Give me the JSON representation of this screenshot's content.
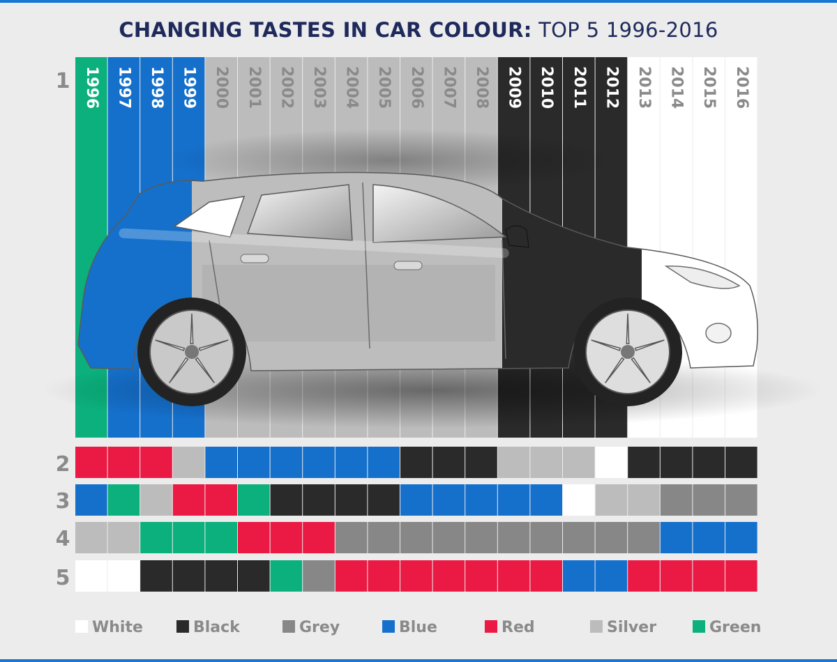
{
  "title": {
    "bold": "CHANGING TASTES IN CAR COLOUR:",
    "light": "TOP 5 1996-2016"
  },
  "colors": {
    "White": "#ffffff",
    "Black": "#2b2a2a",
    "Grey": "#878787",
    "Blue": "#1570cc",
    "Red": "#ea1a44",
    "Silver": "#bcbcbc",
    "Green": "#0bb07c"
  },
  "chart_data": {
    "type": "table",
    "years": [
      "1996",
      "1997",
      "1998",
      "1999",
      "2000",
      "2001",
      "2002",
      "2003",
      "2004",
      "2005",
      "2006",
      "2007",
      "2008",
      "2009",
      "2010",
      "2011",
      "2012",
      "2013",
      "2014",
      "2015",
      "2016"
    ],
    "ranks": [
      "1",
      "2",
      "3",
      "4",
      "5"
    ],
    "rows": [
      [
        "Green",
        "Blue",
        "Blue",
        "Blue",
        "Silver",
        "Silver",
        "Silver",
        "Silver",
        "Silver",
        "Silver",
        "Silver",
        "Silver",
        "Silver",
        "Black",
        "Black",
        "Black",
        "Black",
        "White",
        "White",
        "White",
        "White"
      ],
      [
        "Red",
        "Red",
        "Red",
        "Silver",
        "Blue",
        "Blue",
        "Blue",
        "Blue",
        "Blue",
        "Blue",
        "Black",
        "Black",
        "Black",
        "Silver",
        "Silver",
        "Silver",
        "White",
        "Black",
        "Black",
        "Black",
        "Black"
      ],
      [
        "Blue",
        "Green",
        "Silver",
        "Red",
        "Red",
        "Green",
        "Black",
        "Black",
        "Black",
        "Black",
        "Blue",
        "Blue",
        "Blue",
        "Blue",
        "Blue",
        "White",
        "Silver",
        "Silver",
        "Grey",
        "Grey",
        "Grey"
      ],
      [
        "Silver",
        "Silver",
        "Green",
        "Green",
        "Green",
        "Red",
        "Red",
        "Red",
        "Grey",
        "Grey",
        "Grey",
        "Grey",
        "Grey",
        "Grey",
        "Grey",
        "Grey",
        "Grey",
        "Grey",
        "Blue",
        "Blue",
        "Blue"
      ],
      [
        "White",
        "White",
        "Black",
        "Black",
        "Black",
        "Black",
        "Green",
        "Grey",
        "Red",
        "Red",
        "Red",
        "Red",
        "Red",
        "Red",
        "Red",
        "Blue",
        "Blue",
        "Red",
        "Red",
        "Red",
        "Red"
      ]
    ],
    "legend": [
      "White",
      "Black",
      "Grey",
      "Blue",
      "Red",
      "Silver",
      "Green"
    ],
    "legend_position": "bottom"
  }
}
